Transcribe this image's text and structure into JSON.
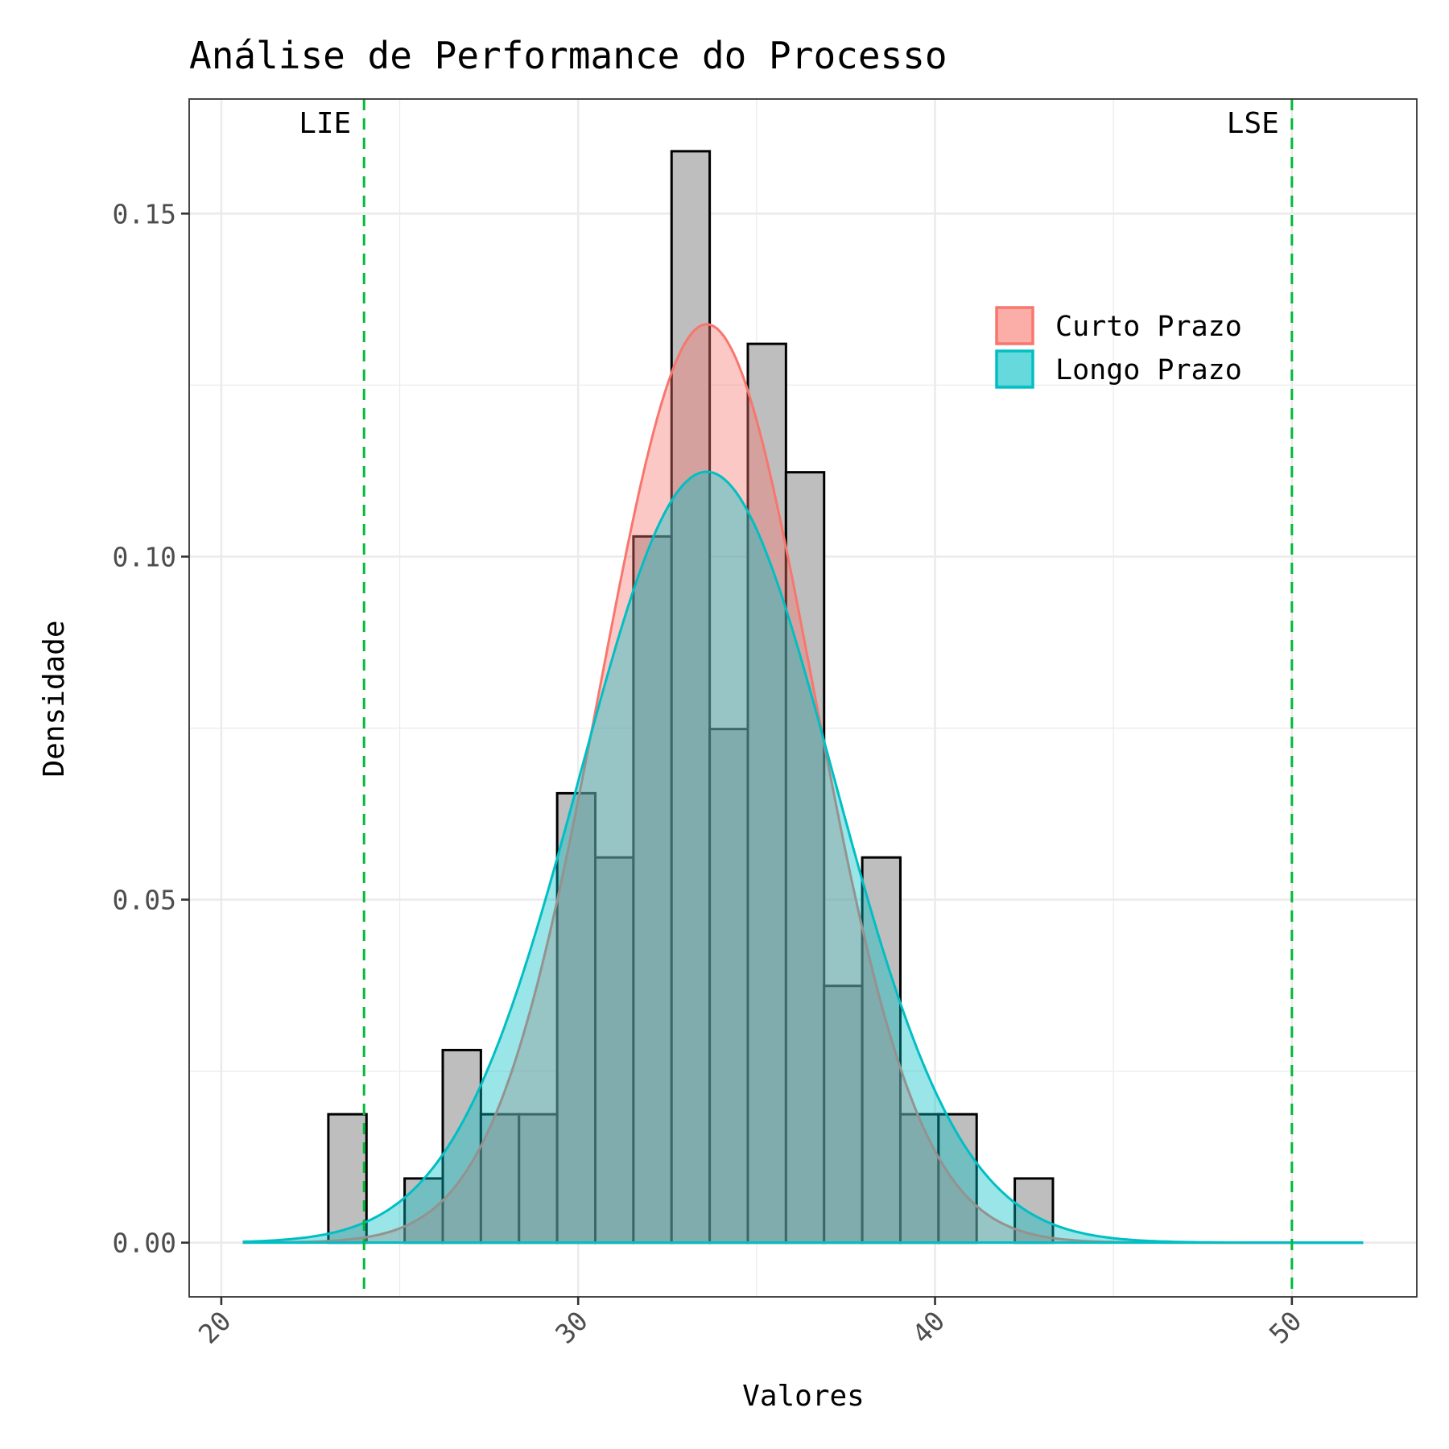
{
  "chart_data": {
    "type": "histogram",
    "title": "Análise de Performance do Processo",
    "xlabel": "Valores",
    "ylabel": "Densidade",
    "xlim": [
      19.1,
      53.5
    ],
    "ylim": [
      -0.0079,
      0.1667
    ],
    "x_ticks": [
      20,
      30,
      40,
      50
    ],
    "x_tick_labels": [
      "20",
      "30",
      "40",
      "50"
    ],
    "y_ticks": [
      0,
      0.05,
      0.1,
      0.15
    ],
    "y_tick_labels": [
      "0.00",
      "0.05",
      "0.10",
      "0.15"
    ],
    "grid": true,
    "histogram": {
      "bin_start": 23.0,
      "bin_width": 1.0686,
      "total_count": 100,
      "counts": [
        2,
        0,
        1,
        3,
        2,
        2,
        7,
        6,
        11,
        17,
        8,
        14,
        12,
        4,
        6,
        2,
        2,
        0,
        1
      ],
      "fill": "#BEBEBE",
      "stroke": "#000000"
    },
    "series": [
      {
        "name": "Curto Prazo",
        "type": "normal_density",
        "mean": 33.6,
        "sd": 2.98,
        "color": "#F8766D"
      },
      {
        "name": "Longo Prazo",
        "type": "normal_density",
        "mean": 33.6,
        "sd": 3.55,
        "color": "#00BFC4"
      }
    ],
    "curve_range": [
      20.6,
      52.0
    ],
    "reference_lines": [
      {
        "label": "LIE",
        "x": 24,
        "color": "#00BA38"
      },
      {
        "label": "LSE",
        "x": 50,
        "color": "#00BA38"
      }
    ],
    "legend": {
      "placement": "top-right",
      "entries": [
        "Curto Prazo",
        "Longo Prazo"
      ]
    }
  }
}
